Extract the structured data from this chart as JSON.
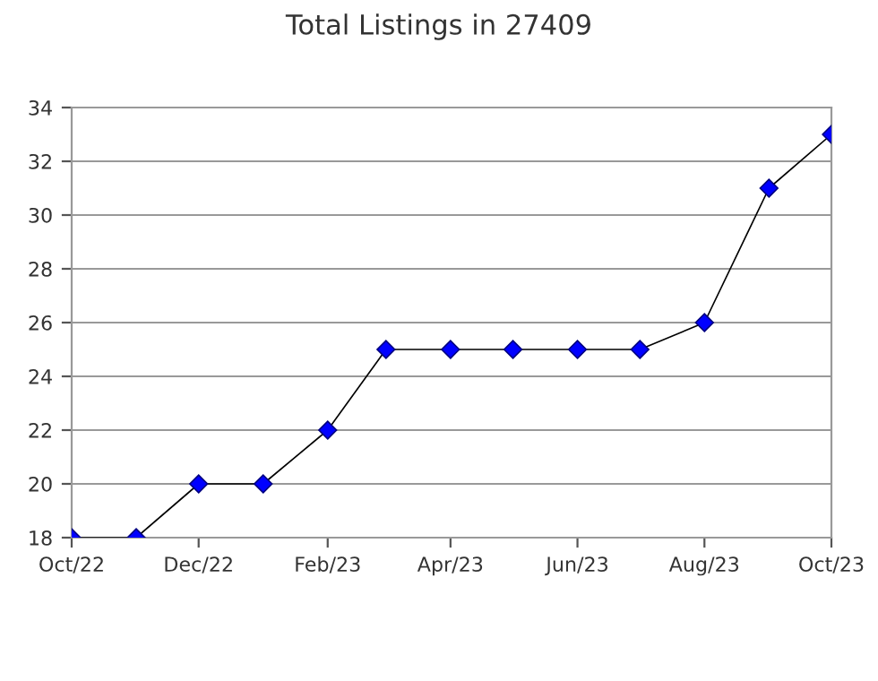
{
  "chart_data": {
    "type": "line",
    "title": "Total Listings in 27409",
    "x": [
      "2022-10",
      "2022-11",
      "2022-12",
      "2023-01",
      "2023-02",
      "2023-03",
      "2023-04",
      "2023-05",
      "2023-06",
      "2023-07",
      "2023-08",
      "2023-09",
      "2023-10"
    ],
    "series": [
      {
        "color": "#0000ff",
        "values": [
          18,
          18,
          20,
          20,
          22,
          25,
          25,
          25,
          25,
          25,
          26,
          31,
          33
        ]
      }
    ],
    "xlim": [
      "2022-10",
      "2023-10"
    ],
    "xticks": [
      {
        "value": "2022-10",
        "label": "Oct/22"
      },
      {
        "value": "2022-12",
        "label": "Dec/22"
      },
      {
        "value": "2023-02",
        "label": "Feb/23"
      },
      {
        "value": "2023-04",
        "label": "Apr/23"
      },
      {
        "value": "2023-06",
        "label": "Jun/23"
      },
      {
        "value": "2023-08",
        "label": "Aug/23"
      },
      {
        "value": "2023-10",
        "label": "Oct/23"
      }
    ],
    "ylim": [
      18,
      34
    ],
    "yticks": [
      18,
      20,
      22,
      24,
      26,
      28,
      30,
      32,
      34
    ],
    "grid": "y",
    "marker": "diamond",
    "line_style": "solid"
  }
}
